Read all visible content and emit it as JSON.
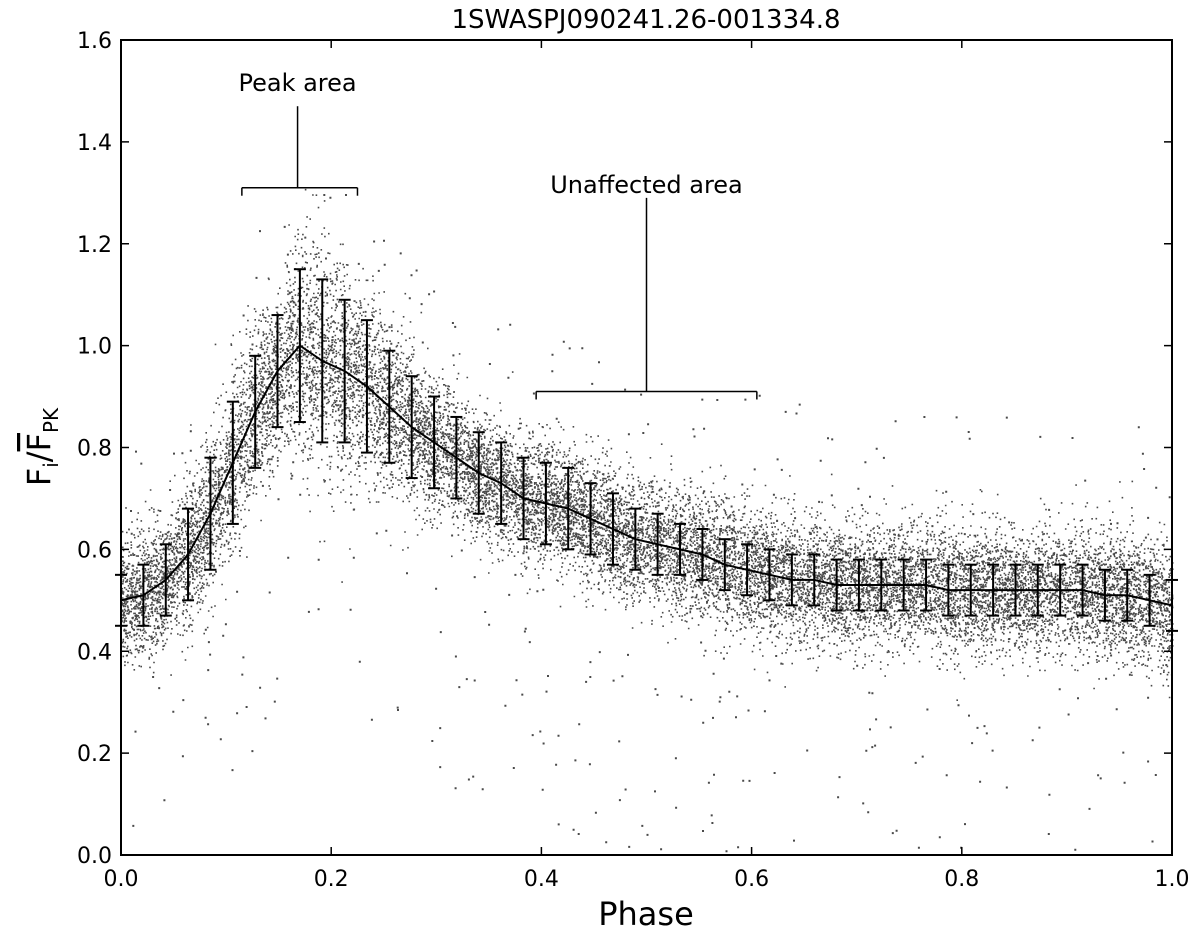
{
  "chart_data": {
    "type": "scatter",
    "title": "1SWASPJ090241.26-001334.8",
    "xlabel": "Phase",
    "ylabel": {
      "main": "F",
      "main_sub": "i",
      "mid": "/",
      "bar": "F",
      "bar_sub": "PK"
    },
    "xlim": [
      0.0,
      1.0
    ],
    "ylim": [
      0.0,
      1.6
    ],
    "xticks": [
      "0.0",
      "0.2",
      "0.4",
      "0.6",
      "0.8",
      "1.0"
    ],
    "yticks": [
      "0.0",
      "0.2",
      "0.4",
      "0.6",
      "0.8",
      "1.0",
      "1.2",
      "1.4",
      "1.6"
    ],
    "grid": false,
    "colors": {
      "points": "#4a4a4a",
      "line": "#000000"
    },
    "annotations": [
      {
        "text": "Peak area",
        "bracket_x": [
          0.115,
          0.225
        ],
        "bracket_y": 1.31,
        "stem_top_y": 1.47,
        "stem_x": 0.168,
        "text_x": 0.168,
        "text_y": 1.5
      },
      {
        "text": "Unaffected area",
        "bracket_x": [
          0.395,
          0.605
        ],
        "bracket_y": 0.91,
        "stem_top_y": 1.29,
        "stem_x": 0.5,
        "text_x": 0.5,
        "text_y": 1.3
      }
    ],
    "mean_curve": {
      "x": [
        0.0,
        0.0213,
        0.0426,
        0.0638,
        0.0851,
        0.1064,
        0.1277,
        0.1489,
        0.1702,
        0.1915,
        0.2128,
        0.234,
        0.2553,
        0.2766,
        0.2979,
        0.3191,
        0.3404,
        0.3617,
        0.383,
        0.4043,
        0.4255,
        0.4468,
        0.4681,
        0.4894,
        0.5106,
        0.5319,
        0.5532,
        0.5745,
        0.5957,
        0.617,
        0.6383,
        0.6596,
        0.6809,
        0.7021,
        0.7234,
        0.7447,
        0.766,
        0.7872,
        0.8085,
        0.8298,
        0.8511,
        0.8723,
        0.8936,
        0.9149,
        0.9362,
        0.9574,
        0.9787,
        1.0
      ],
      "y": [
        0.5,
        0.51,
        0.54,
        0.59,
        0.67,
        0.77,
        0.87,
        0.95,
        1.0,
        0.97,
        0.95,
        0.92,
        0.88,
        0.84,
        0.81,
        0.78,
        0.75,
        0.73,
        0.7,
        0.69,
        0.68,
        0.66,
        0.64,
        0.62,
        0.61,
        0.6,
        0.59,
        0.57,
        0.56,
        0.55,
        0.54,
        0.54,
        0.53,
        0.53,
        0.53,
        0.53,
        0.53,
        0.52,
        0.52,
        0.52,
        0.52,
        0.52,
        0.52,
        0.52,
        0.51,
        0.51,
        0.5,
        0.49
      ],
      "err": [
        0.05,
        0.06,
        0.07,
        0.09,
        0.11,
        0.12,
        0.11,
        0.11,
        0.15,
        0.16,
        0.14,
        0.13,
        0.11,
        0.1,
        0.09,
        0.08,
        0.08,
        0.08,
        0.08,
        0.08,
        0.08,
        0.07,
        0.07,
        0.06,
        0.06,
        0.05,
        0.05,
        0.05,
        0.05,
        0.05,
        0.05,
        0.05,
        0.05,
        0.05,
        0.05,
        0.05,
        0.05,
        0.05,
        0.05,
        0.05,
        0.05,
        0.05,
        0.05,
        0.05,
        0.05,
        0.05,
        0.05,
        0.05
      ]
    },
    "scatter_spread": 0.06,
    "scatter_points_per_phase": 18000,
    "outlier_count": 450
  }
}
